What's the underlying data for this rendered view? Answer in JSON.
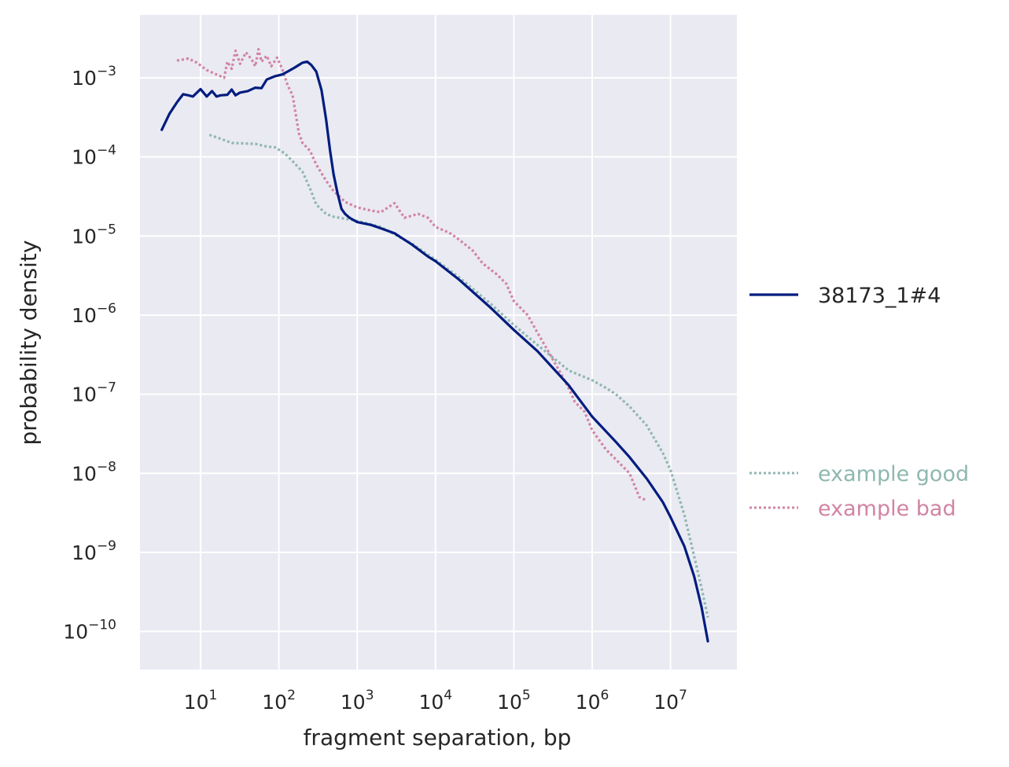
{
  "chart_data": {
    "type": "line",
    "xlabel": "fragment separation, bp",
    "ylabel": "probability density",
    "xscale": "log",
    "yscale": "log",
    "xlim": [
      1.6,
      70000000
    ],
    "ylim": [
      6e-11,
      0.006
    ],
    "grid": true,
    "legend_placement": "right",
    "x_ticks": [
      {
        "base": "10",
        "exp": "1"
      },
      {
        "base": "10",
        "exp": "2"
      },
      {
        "base": "10",
        "exp": "3"
      },
      {
        "base": "10",
        "exp": "4"
      },
      {
        "base": "10",
        "exp": "5"
      },
      {
        "base": "10",
        "exp": "6"
      },
      {
        "base": "10",
        "exp": "7"
      }
    ],
    "y_ticks": [
      {
        "base": "10",
        "exp": "−3"
      },
      {
        "base": "10",
        "exp": "−4"
      },
      {
        "base": "10",
        "exp": "−5"
      },
      {
        "base": "10",
        "exp": "−6"
      },
      {
        "base": "10",
        "exp": "−7"
      },
      {
        "base": "10",
        "exp": "−8"
      },
      {
        "base": "10",
        "exp": "−9"
      },
      {
        "base": "10",
        "exp": "−10"
      }
    ],
    "series": [
      {
        "name": "38173_1#4",
        "style": "solid",
        "color": "#001c7f",
        "points": [
          [
            3.2,
            0.00022
          ],
          [
            4,
            0.00035
          ],
          [
            5,
            0.00049
          ],
          [
            6,
            0.00062
          ],
          [
            7,
            0.0006
          ],
          [
            8,
            0.00058
          ],
          [
            10,
            0.00072
          ],
          [
            12,
            0.00058
          ],
          [
            14,
            0.00068
          ],
          [
            16,
            0.00058
          ],
          [
            18,
            0.0006
          ],
          [
            22,
            0.00061
          ],
          [
            25,
            0.00071
          ],
          [
            28,
            0.0006
          ],
          [
            32,
            0.00065
          ],
          [
            40,
            0.00068
          ],
          [
            50,
            0.00075
          ],
          [
            60,
            0.00074
          ],
          [
            70,
            0.00095
          ],
          [
            90,
            0.00105
          ],
          [
            110,
            0.0011
          ],
          [
            130,
            0.0012
          ],
          [
            160,
            0.00135
          ],
          [
            200,
            0.00155
          ],
          [
            230,
            0.0016
          ],
          [
            260,
            0.00145
          ],
          [
            300,
            0.0012
          ],
          [
            350,
            0.0007
          ],
          [
            400,
            0.0003
          ],
          [
            450,
            0.00012
          ],
          [
            500,
            6e-05
          ],
          [
            560,
            3.5e-05
          ],
          [
            630,
            2.2e-05
          ],
          [
            700,
            1.9e-05
          ],
          [
            800,
            1.7e-05
          ],
          [
            1000,
            1.5e-05
          ],
          [
            1500,
            1.38e-05
          ],
          [
            2000,
            1.25e-05
          ],
          [
            3000,
            1.08e-05
          ],
          [
            5000,
            7.8e-06
          ],
          [
            8000,
            5.5e-06
          ],
          [
            10000,
            4.8e-06
          ],
          [
            20000,
            2.8e-06
          ],
          [
            50000,
            1.25e-06
          ],
          [
            100000,
            6.5e-07
          ],
          [
            200000,
            3.5e-07
          ],
          [
            500000,
            1.3e-07
          ],
          [
            1000000,
            5.2e-08
          ],
          [
            2000000,
            2.5e-08
          ],
          [
            3000000,
            1.6e-08
          ],
          [
            5000000,
            8.5e-09
          ],
          [
            8000000,
            4.3e-09
          ],
          [
            10000000,
            2.8e-09
          ],
          [
            15000000,
            1.2e-09
          ],
          [
            20000000,
            5e-10
          ],
          [
            25000000,
            2e-10
          ],
          [
            30000000,
            7.5e-11
          ]
        ]
      },
      {
        "name": "example good",
        "style": "dotted",
        "color": "#8fb7b0",
        "points": [
          [
            13,
            0.00019
          ],
          [
            18,
            0.00017
          ],
          [
            25,
            0.00015
          ],
          [
            35,
            0.000148
          ],
          [
            50,
            0.000146
          ],
          [
            70,
            0.000135
          ],
          [
            90,
            0.000132
          ],
          [
            120,
            0.00011
          ],
          [
            150,
            8.8e-05
          ],
          [
            200,
            6.5e-05
          ],
          [
            250,
            4e-05
          ],
          [
            300,
            2.5e-05
          ],
          [
            400,
            1.9e-05
          ],
          [
            500,
            1.75e-05
          ],
          [
            700,
            1.65e-05
          ],
          [
            1000,
            1.55e-05
          ],
          [
            2000,
            1.3e-05
          ],
          [
            5000,
            8e-06
          ],
          [
            10000,
            5e-06
          ],
          [
            20000,
            3e-06
          ],
          [
            50000,
            1.4e-06
          ],
          [
            100000,
            7.5e-07
          ],
          [
            200000,
            4.2e-07
          ],
          [
            500000,
            2e-07
          ],
          [
            1000000,
            1.5e-07
          ],
          [
            1500000,
            1.2e-07
          ],
          [
            2000000,
            1e-07
          ],
          [
            3000000,
            7e-08
          ],
          [
            5000000,
            4e-08
          ],
          [
            8000000,
            1.8e-08
          ],
          [
            10000000,
            1.1e-08
          ],
          [
            15000000,
            3e-09
          ],
          [
            20000000,
            9e-10
          ],
          [
            25000000,
            3.5e-10
          ],
          [
            30000000,
            1.5e-10
          ]
        ]
      },
      {
        "name": "example bad",
        "style": "dotted",
        "color": "#d184a4",
        "points": [
          [
            5,
            0.00165
          ],
          [
            7,
            0.00175
          ],
          [
            9,
            0.00155
          ],
          [
            12,
            0.00125
          ],
          [
            16,
            0.0011
          ],
          [
            20,
            0.001
          ],
          [
            22,
            0.0016
          ],
          [
            25,
            0.0013
          ],
          [
            28,
            0.0022
          ],
          [
            32,
            0.0015
          ],
          [
            38,
            0.0021
          ],
          [
            45,
            0.0017
          ],
          [
            50,
            0.0014
          ],
          [
            55,
            0.0023
          ],
          [
            60,
            0.0016
          ],
          [
            70,
            0.0019
          ],
          [
            80,
            0.0014
          ],
          [
            95,
            0.0018
          ],
          [
            110,
            0.0013
          ],
          [
            130,
            0.0008
          ],
          [
            150,
            0.0006
          ],
          [
            180,
            0.0002
          ],
          [
            200,
            0.00015
          ],
          [
            250,
            0.00012
          ],
          [
            300,
            8e-05
          ],
          [
            400,
            5e-05
          ],
          [
            500,
            3.7e-05
          ],
          [
            700,
            2.7e-05
          ],
          [
            1000,
            2.3e-05
          ],
          [
            1500,
            2.1e-05
          ],
          [
            2000,
            2e-05
          ],
          [
            3000,
            2.6e-05
          ],
          [
            4000,
            1.7e-05
          ],
          [
            6000,
            1.9e-05
          ],
          [
            8000,
            1.7e-05
          ],
          [
            10000,
            1.3e-05
          ],
          [
            15000,
            1.1e-05
          ],
          [
            20000,
            9e-06
          ],
          [
            30000,
            6.5e-06
          ],
          [
            40000,
            4.5e-06
          ],
          [
            60000,
            3.3e-06
          ],
          [
            80000,
            2.5e-06
          ],
          [
            100000,
            1.5e-06
          ],
          [
            150000,
            1e-06
          ],
          [
            200000,
            6e-07
          ],
          [
            300000,
            3e-07
          ],
          [
            400000,
            1.8e-07
          ],
          [
            500000,
            1.2e-07
          ],
          [
            600000,
            8e-08
          ],
          [
            800000,
            6e-08
          ],
          [
            1000000,
            3.5e-08
          ],
          [
            1500000,
            2e-08
          ],
          [
            2000000,
            1.5e-08
          ],
          [
            3000000,
            1e-08
          ],
          [
            4000000,
            5e-09
          ],
          [
            5000000,
            4.5e-09
          ]
        ]
      }
    ]
  }
}
